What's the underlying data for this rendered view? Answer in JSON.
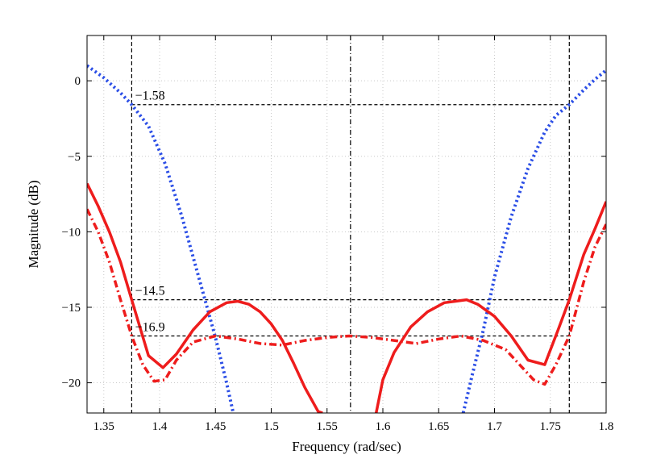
{
  "chart_data": {
    "type": "line",
    "title": "",
    "xlabel": "Frequency (rad/sec)",
    "ylabel": "Magnitude (dB)",
    "xlim": [
      1.335,
      1.8
    ],
    "ylim": [
      -22,
      3
    ],
    "grid": true,
    "xticks": [
      {
        "value": 1.35,
        "label": "1.35"
      },
      {
        "value": 1.4,
        "label": "1.4"
      },
      {
        "value": 1.45,
        "label": "1.45"
      },
      {
        "value": 1.5,
        "label": "1.5"
      },
      {
        "value": 1.55,
        "label": "1.55"
      },
      {
        "value": 1.6,
        "label": "1.6"
      },
      {
        "value": 1.65,
        "label": "1.65"
      },
      {
        "value": 1.7,
        "label": "1.7"
      },
      {
        "value": 1.75,
        "label": "1.75"
      },
      {
        "value": 1.8,
        "label": "1.8"
      }
    ],
    "yticks": [
      {
        "value": 0,
        "label": "0"
      },
      {
        "value": -5,
        "label": "−5"
      },
      {
        "value": -10,
        "label": "−10"
      },
      {
        "value": -15,
        "label": "−15"
      },
      {
        "value": -20,
        "label": "−20"
      }
    ],
    "series": [
      {
        "style": "dotted",
        "color": "#2b4ee6",
        "x": [
          1.335,
          1.35,
          1.365,
          1.375,
          1.39,
          1.405,
          1.42,
          1.435,
          1.45,
          1.46,
          1.466
        ],
        "y": [
          1.0,
          0.2,
          -0.8,
          -1.58,
          -3.0,
          -5.5,
          -9.0,
          -13.0,
          -17.0,
          -20.0,
          -22.0
        ]
      },
      {
        "style": "dotted",
        "color": "#2b4ee6",
        "x": [
          1.672,
          1.68,
          1.69,
          1.7,
          1.715,
          1.73,
          1.745,
          1.755,
          1.767,
          1.78,
          1.79,
          1.8
        ],
        "y": [
          -22.0,
          -19.5,
          -16.5,
          -13.0,
          -9.0,
          -5.8,
          -3.4,
          -2.3,
          -1.58,
          -0.6,
          0.1,
          0.7
        ]
      },
      {
        "style": "solid",
        "color": "#ee1c1c",
        "x": [
          1.335,
          1.345,
          1.355,
          1.365,
          1.375,
          1.39,
          1.403,
          1.415,
          1.43,
          1.445,
          1.46,
          1.47,
          1.48,
          1.49,
          1.5,
          1.51,
          1.52,
          1.53,
          1.542,
          1.546
        ],
        "y": [
          -6.8,
          -8.3,
          -10.0,
          -12.0,
          -14.5,
          -18.2,
          -19.0,
          -18.1,
          -16.5,
          -15.3,
          -14.7,
          -14.6,
          -14.8,
          -15.3,
          -16.1,
          -17.2,
          -18.7,
          -20.3,
          -21.9,
          -22.0
        ]
      },
      {
        "style": "solid",
        "color": "#ee1c1c",
        "x": [
          1.594,
          1.6,
          1.61,
          1.625,
          1.64,
          1.655,
          1.665,
          1.675,
          1.685,
          1.7,
          1.715,
          1.73,
          1.745,
          1.757,
          1.767,
          1.78,
          1.79,
          1.8
        ],
        "y": [
          -22.0,
          -19.8,
          -18.0,
          -16.3,
          -15.3,
          -14.7,
          -14.6,
          -14.5,
          -14.8,
          -15.6,
          -16.9,
          -18.5,
          -18.8,
          -16.5,
          -14.5,
          -11.5,
          -9.8,
          -8.0
        ]
      },
      {
        "style": "dashdot",
        "color": "#ee1c1c",
        "x": [
          1.335,
          1.345,
          1.355,
          1.365,
          1.375,
          1.385,
          1.395,
          1.405,
          1.415,
          1.43,
          1.45,
          1.47,
          1.49,
          1.51,
          1.53,
          1.55,
          1.57,
          1.59,
          1.61,
          1.63,
          1.65,
          1.67,
          1.69,
          1.71,
          1.725,
          1.735,
          1.745,
          1.755,
          1.767,
          1.78,
          1.79,
          1.8
        ],
        "y": [
          -8.5,
          -10.0,
          -12.0,
          -14.5,
          -16.9,
          -18.8,
          -19.9,
          -19.8,
          -18.5,
          -17.3,
          -16.9,
          -17.1,
          -17.4,
          -17.5,
          -17.2,
          -17.0,
          -16.9,
          -17.0,
          -17.2,
          -17.4,
          -17.1,
          -16.9,
          -17.2,
          -17.8,
          -19.0,
          -19.8,
          -20.1,
          -18.8,
          -16.9,
          -13.3,
          -11.0,
          -9.5
        ]
      }
    ],
    "reference_lines": {
      "vertical": [
        {
          "x": 1.375,
          "style": "dashed"
        },
        {
          "x": 1.571,
          "style": "dashdot"
        },
        {
          "x": 1.767,
          "style": "dashed"
        }
      ],
      "horizontal": [
        {
          "y": -1.58,
          "from": 1.375,
          "to": 1.767
        },
        {
          "y": -14.5,
          "from": 1.375,
          "to": 1.767
        },
        {
          "y": -16.9,
          "from": 1.375,
          "to": 1.767
        }
      ]
    },
    "annotations": [
      {
        "text": "−1.58",
        "x": 1.378,
        "y": -1.58
      },
      {
        "text": "−14.5",
        "x": 1.378,
        "y": -14.5
      },
      {
        "text": "−16.9",
        "x": 1.378,
        "y": -16.9
      }
    ]
  }
}
